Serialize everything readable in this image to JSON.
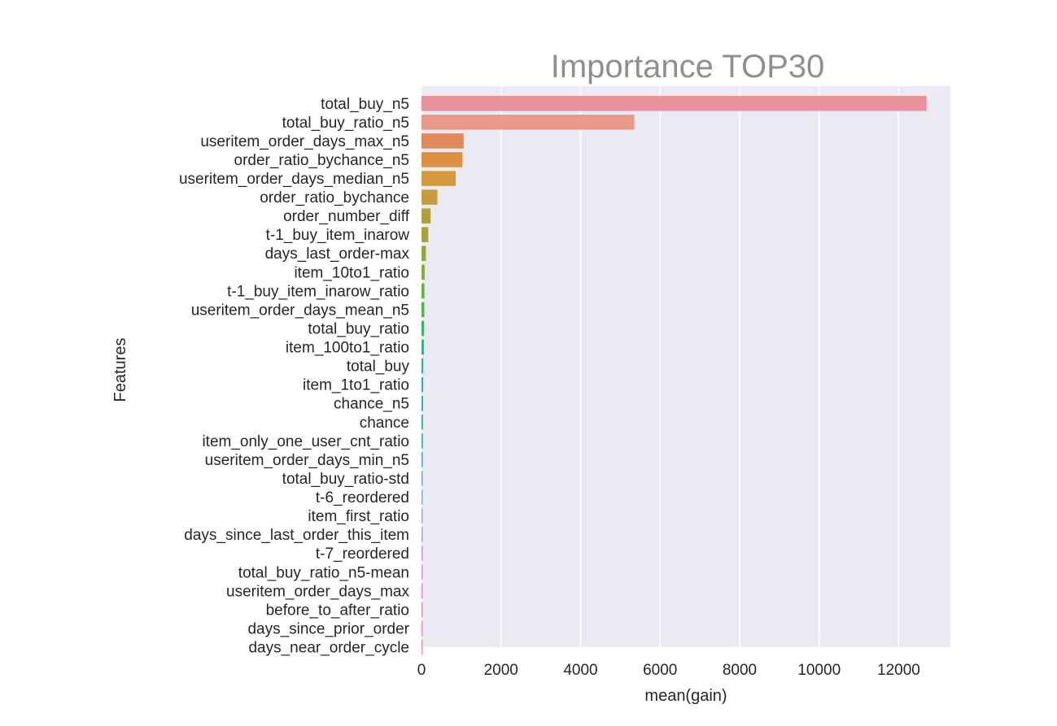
{
  "chart_data": {
    "type": "bar",
    "orientation": "horizontal",
    "title": "Importance TOP30",
    "xlabel": "mean(gain)",
    "ylabel": "Features",
    "xlim": [
      0,
      13300
    ],
    "xticks": [
      0,
      2000,
      4000,
      6000,
      8000,
      10000,
      12000
    ],
    "grid": true,
    "categories": [
      "total_buy_n5",
      "total_buy_ratio_n5",
      "useritem_order_days_max_n5",
      "order_ratio_bychance_n5",
      "useritem_order_days_median_n5",
      "order_ratio_bychance",
      "order_number_diff",
      "t-1_buy_item_inarow",
      "days_last_order-max",
      "item_10to1_ratio",
      "t-1_buy_item_inarow_ratio",
      "useritem_order_days_mean_n5",
      "total_buy_ratio",
      "item_100to1_ratio",
      "total_buy",
      "item_1to1_ratio",
      "chance_n5",
      "chance",
      "item_only_one_user_cnt_ratio",
      "useritem_order_days_min_n5",
      "total_buy_ratio-std",
      "t-6_reordered",
      "item_first_ratio",
      "days_since_last_order_this_item",
      "t-7_reordered",
      "total_buy_ratio_n5-mean",
      "useritem_order_days_max",
      "before_to_after_ratio",
      "days_since_prior_order",
      "days_near_order_cycle"
    ],
    "values": [
      12700,
      5350,
      1060,
      1030,
      860,
      400,
      230,
      170,
      110,
      80,
      75,
      70,
      65,
      60,
      45,
      42,
      40,
      38,
      35,
      33,
      30,
      28,
      26,
      24,
      22,
      20,
      18,
      16,
      14,
      12
    ],
    "colors": [
      "#e8909c",
      "#eb978a",
      "#e08a5c",
      "#dc9040",
      "#d69a3e",
      "#c89c3c",
      "#b4a03a",
      "#a4a43a",
      "#94a838",
      "#84ac38",
      "#6cb040",
      "#52b250",
      "#40b06a",
      "#3cae82",
      "#3aac94",
      "#3aaaa4",
      "#3caab4",
      "#3ea8c4",
      "#42a8d2",
      "#4ea6dc",
      "#72a2e4",
      "#90a0e8",
      "#a89ce8",
      "#bc98e6",
      "#cc94e2",
      "#da90dc",
      "#e28ed0",
      "#e68ec2",
      "#e890b4",
      "#e891a8"
    ]
  }
}
